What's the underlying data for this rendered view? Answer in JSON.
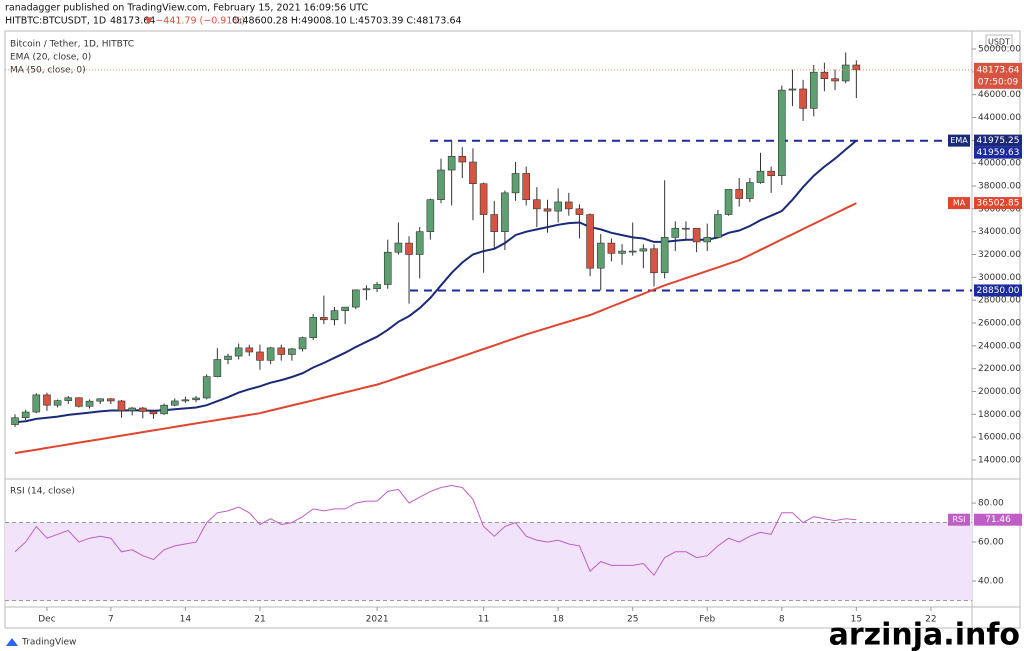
{
  "header": {
    "author": "ranadagger published on TradingView.com, February 15, 2021 16:09:56 UTC",
    "symbol": "HITBTC:BTCUSDT, 1D",
    "price": "48173.64",
    "change": "▼ −441.79 (−0.91%)",
    "ohlc": "O:48600.28 H:49008.10 L:45703.39 C:48173.64"
  },
  "footer": {
    "brand": "TradingView",
    "watermark": "arzinja.info"
  },
  "chart_data": {
    "type": "candlestick",
    "title": "Bitcoin / Tether, 1D, HITBTC",
    "unit": "USDT",
    "categories": [
      null,
      null,
      null,
      "Dec",
      null,
      null,
      null,
      null,
      null,
      "7",
      null,
      null,
      null,
      null,
      null,
      null,
      "14",
      null,
      null,
      null,
      null,
      null,
      null,
      "21",
      null,
      null,
      null,
      null,
      null,
      null,
      null,
      null,
      null,
      null,
      "2021",
      null,
      null,
      null,
      null,
      null,
      null,
      null,
      null,
      null,
      "11",
      null,
      null,
      null,
      null,
      null,
      null,
      "18",
      null,
      null,
      null,
      null,
      null,
      null,
      "25",
      null,
      null,
      null,
      null,
      null,
      null,
      "Feb",
      null,
      null,
      null,
      null,
      null,
      null,
      "8",
      null,
      null,
      null,
      null,
      null,
      null,
      "15",
      null,
      null,
      null,
      null,
      null,
      null,
      "22",
      null,
      null,
      null
    ],
    "open": [
      17100,
      17700,
      18200,
      19700,
      18800,
      19200,
      19450,
      18700,
      19150,
      19360,
      19170,
      18320,
      18550,
      18250,
      18040,
      18800,
      19170,
      19270,
      19430,
      21300,
      22800,
      23100,
      23820,
      23460,
      22730,
      23820,
      23240,
      23730,
      24710,
      26490,
      26280,
      27080,
      27390,
      28900,
      29000,
      29370,
      32200,
      33000,
      32000,
      34000,
      36800,
      39400,
      40600,
      40100,
      38200,
      35500,
      34000,
      37400,
      39100,
      36800,
      36000,
      35800,
      36600,
      36000,
      35500,
      30800,
      33000,
      32100,
      32300,
      32300,
      32500,
      30400,
      33500,
      34300,
      34300,
      33100,
      33500,
      35500,
      37700,
      36900,
      38300,
      39300,
      38900,
      46400,
      46500,
      44800,
      47970,
      47400,
      47200,
      48600.28,
      null,
      null,
      null,
      null,
      null,
      null,
      null,
      null,
      null,
      null
    ],
    "high": [
      18000,
      18400,
      19850,
      19900,
      19300,
      19600,
      19500,
      19300,
      19400,
      19420,
      19250,
      18650,
      18650,
      18300,
      18950,
      19400,
      19550,
      19600,
      21500,
      23800,
      23300,
      24200,
      24100,
      24100,
      23900,
      24100,
      23800,
      24800,
      26800,
      28400,
      27400,
      27400,
      28900,
      29300,
      29600,
      33300,
      34800,
      33600,
      34400,
      36900,
      40400,
      41950,
      41400,
      41300,
      38300,
      36700,
      37600,
      40100,
      39700,
      37900,
      36800,
      37800,
      37400,
      36400,
      35600,
      33800,
      33400,
      32900,
      34800,
      32900,
      32900,
      38500,
      34900,
      34900,
      34300,
      34700,
      35900,
      37700,
      38700,
      38700,
      40900,
      39700,
      46800,
      48200,
      47300,
      48600,
      48800,
      48200,
      49700,
      49008.1,
      null,
      null,
      null,
      null,
      null,
      null,
      null,
      null,
      null,
      null
    ],
    "low": [
      16900,
      17500,
      18100,
      18300,
      18600,
      18900,
      18600,
      18500,
      18900,
      18900,
      17700,
      17900,
      17650,
      17600,
      17950,
      18700,
      19000,
      19050,
      19300,
      21250,
      22400,
      22800,
      23100,
      21900,
      22400,
      22700,
      22700,
      23500,
      24500,
      25900,
      25800,
      25900,
      27200,
      28000,
      28700,
      29000,
      32000,
      27700,
      29900,
      33300,
      36500,
      36300,
      38700,
      35000,
      30400,
      32500,
      32400,
      36700,
      36300,
      34400,
      33900,
      34800,
      35400,
      33400,
      30100,
      28850,
      31400,
      31100,
      31900,
      30800,
      29200,
      29900,
      32300,
      33300,
      32200,
      32300,
      33400,
      35400,
      36200,
      36600,
      38200,
      37400,
      38100,
      45000,
      43700,
      44100,
      46300,
      46400,
      47000,
      45703.39,
      null,
      null,
      null,
      null,
      null,
      null,
      null,
      null,
      null,
      null
    ],
    "close": [
      17700,
      18200,
      19700,
      18800,
      19200,
      19450,
      18700,
      19150,
      19360,
      19170,
      18320,
      18550,
      18250,
      18040,
      18800,
      19170,
      19270,
      19430,
      21300,
      22800,
      23100,
      23820,
      23460,
      22730,
      23820,
      23240,
      23730,
      24710,
      26490,
      26280,
      27080,
      27390,
      28900,
      29000,
      29370,
      32200,
      33000,
      32000,
      34000,
      36800,
      39400,
      40600,
      40100,
      38200,
      35500,
      34000,
      37400,
      39100,
      36800,
      36000,
      35800,
      36600,
      36000,
      35500,
      30800,
      33000,
      32100,
      32300,
      32300,
      32500,
      30400,
      33500,
      34300,
      34300,
      33100,
      33500,
      35500,
      37700,
      36900,
      38300,
      39300,
      38900,
      46400,
      46500,
      44800,
      47970,
      47400,
      47200,
      48600,
      48173.64,
      null,
      null,
      null,
      null,
      null,
      null,
      null,
      null,
      null,
      null
    ],
    "up_color": "#5e9f72",
    "down_color": "#d75442",
    "last_label": "48173.64",
    "countdown": "07:50:09",
    "overlays": [
      {
        "name": "EMA (20, close, 0)",
        "label": "EMA",
        "color": "#1b2a78",
        "value_label": "41975.25",
        "values": [
          17300,
          17400,
          17600,
          17700,
          17800,
          17950,
          18050,
          18150,
          18250,
          18330,
          18330,
          18350,
          18340,
          18310,
          18360,
          18440,
          18520,
          18600,
          18800,
          19150,
          19500,
          19900,
          20200,
          20450,
          20770,
          21000,
          21270,
          21600,
          22100,
          22500,
          22950,
          23400,
          23900,
          24350,
          24800,
          25400,
          26100,
          26600,
          27300,
          28200,
          29300,
          30400,
          31300,
          32000,
          32300,
          32500,
          33000,
          33700,
          34000,
          34200,
          34400,
          34600,
          34750,
          34800,
          34400,
          34200,
          33900,
          33700,
          33500,
          33400,
          33100,
          33100,
          33200,
          33300,
          33300,
          33300,
          33500,
          33900,
          34100,
          34500,
          35000,
          35400,
          35800,
          36800,
          37900,
          38900,
          39700,
          40400,
          41200,
          41975.25,
          null,
          null,
          null,
          null,
          null,
          null,
          null,
          null,
          null,
          null
        ]
      },
      {
        "name": "MA (50, close, 0)",
        "label": "MA",
        "color": "#e0452f",
        "value_label": "36502.85",
        "values": [
          14600,
          14750,
          14900,
          15060,
          15210,
          15360,
          15520,
          15670,
          15820,
          15980,
          16130,
          16280,
          16440,
          16590,
          16740,
          16900,
          17050,
          17200,
          17350,
          17500,
          17650,
          17800,
          17950,
          18100,
          18330,
          18550,
          18780,
          19000,
          19230,
          19460,
          19690,
          19920,
          20150,
          20380,
          20600,
          20900,
          21220,
          21530,
          21840,
          22150,
          22450,
          22760,
          23080,
          23400,
          23720,
          24040,
          24360,
          24680,
          25000,
          25280,
          25570,
          25850,
          26130,
          26420,
          26700,
          27070,
          27440,
          27810,
          28190,
          28560,
          28930,
          29300,
          29610,
          29930,
          30240,
          30560,
          30870,
          31190,
          31500,
          31950,
          32410,
          32860,
          33320,
          33770,
          34230,
          34680,
          35140,
          35590,
          36050,
          36502.85,
          null,
          null,
          null,
          null,
          null,
          null,
          null,
          null,
          null,
          null
        ]
      }
    ],
    "hlines": [
      {
        "value": 41959.63,
        "label": "41959.63"
      },
      {
        "value": 28850,
        "label": "28850.00"
      }
    ],
    "hline_color": "#1b2a9e",
    "ylim": [
      12420,
      50790
    ],
    "yticks": [
      {
        "value": 14000,
        "label": "14000.00"
      },
      {
        "value": 16000,
        "label": "16000.00"
      },
      {
        "value": 18000,
        "label": "18000.00"
      },
      {
        "value": 20000,
        "label": "20000.00"
      },
      {
        "value": 22000,
        "label": "22000.00"
      },
      {
        "value": 24000,
        "label": "24000.00"
      },
      {
        "value": 26000,
        "label": "26000.00"
      },
      {
        "value": 28000,
        "label": "28000.00"
      },
      {
        "value": 30000,
        "label": "30000.00"
      },
      {
        "value": 32000,
        "label": "32000.00"
      },
      {
        "value": 34000,
        "label": "34000.00"
      },
      {
        "value": 36000,
        "label": "36000.00"
      },
      {
        "value": 38000,
        "label": "38000.00"
      },
      {
        "value": 40000,
        "label": "40000.00"
      },
      {
        "value": 42000,
        "label": "42000.00"
      },
      {
        "value": 44000,
        "label": "44000.00"
      },
      {
        "value": 46000,
        "label": "46000.00"
      },
      {
        "value": 48000,
        "label": "48000.00"
      },
      {
        "value": 50000,
        "label": "50000.00"
      }
    ],
    "grid": false,
    "rsi": {
      "name": "RSI (14, close)",
      "label": "RSI",
      "color": "#c05ec7",
      "value_label": "71.46",
      "bands": [
        30,
        70
      ],
      "band_color": "#f1e3fa",
      "ylim": [
        27.7,
        90.3
      ],
      "yticks": [
        {
          "value": 40,
          "label": "40.00"
        },
        {
          "value": 60,
          "label": "60.00"
        },
        {
          "value": 80,
          "label": "80.00"
        }
      ],
      "values": [
        55,
        60,
        68,
        62,
        64,
        66,
        60,
        62,
        63,
        62,
        55,
        56,
        53,
        51,
        56,
        58,
        59,
        60,
        70,
        75,
        76,
        78,
        75,
        69,
        72,
        69,
        70,
        73,
        77,
        76,
        77,
        77,
        80,
        81,
        81,
        86,
        87,
        80,
        83,
        86,
        88,
        89,
        88,
        82,
        68,
        63,
        68,
        70,
        63,
        61,
        60,
        61,
        59,
        58,
        45,
        50,
        48,
        48,
        48,
        49,
        43,
        52,
        55,
        55,
        52,
        53,
        58,
        62,
        60,
        63,
        65,
        64,
        75,
        75,
        70,
        73,
        72,
        71,
        72,
        71.46,
        null,
        null,
        null,
        null,
        null,
        null,
        null,
        null,
        null,
        null
      ]
    }
  }
}
